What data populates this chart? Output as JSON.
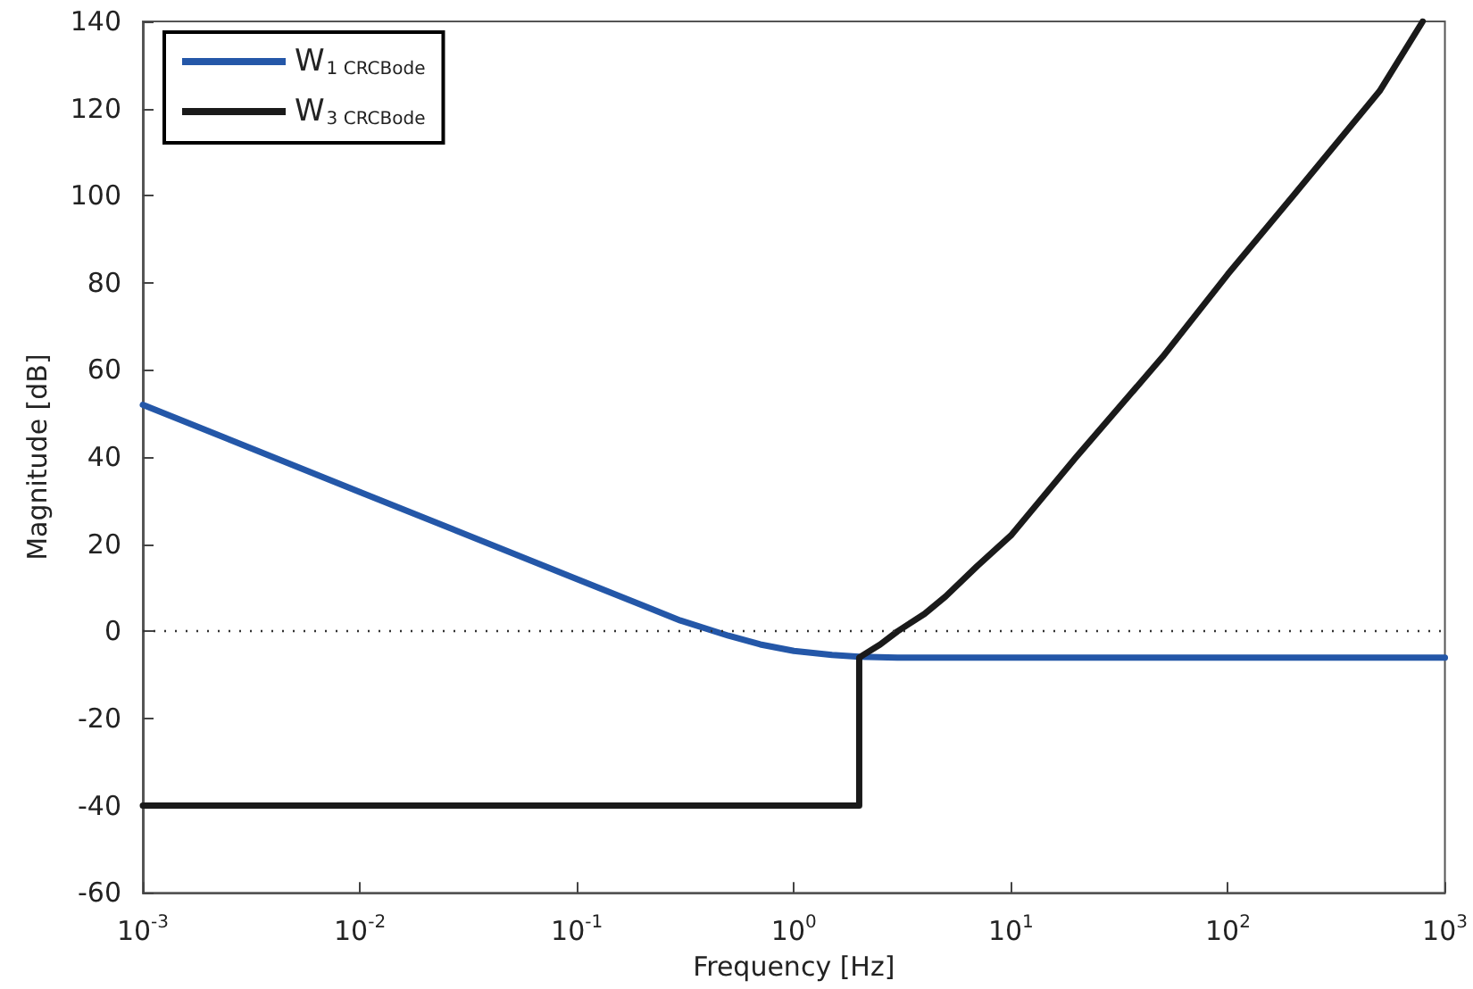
{
  "chart_data": {
    "type": "line",
    "xlabel": "Frequency [Hz]",
    "ylabel": "Magnitude [dB]",
    "log": "x",
    "xlim": [
      0.001,
      1000
    ],
    "xticks": [
      {
        "value": 0.001,
        "label": "10$^{-3}$"
      },
      {
        "value": 0.01,
        "label": "10$^{-2}$"
      },
      {
        "value": 0.1,
        "label": "10$^{-1}$"
      },
      {
        "value": 1,
        "label": "10$^{0}$"
      },
      {
        "value": 10,
        "label": "10$^{1}$"
      },
      {
        "value": 100,
        "label": "10$^{2}$"
      },
      {
        "value": 1000,
        "label": "10$^{3}$"
      }
    ],
    "ylim": [
      -60,
      140
    ],
    "yticks": [
      -60,
      -40,
      -20,
      0,
      20,
      40,
      60,
      80,
      100,
      120,
      140
    ],
    "grid": false,
    "legend": "top left",
    "marker": "none",
    "line_style": "solid",
    "ref_lines": [
      {
        "axis": "y",
        "value": 0,
        "color": "#333333",
        "line_style": "dotted"
      }
    ],
    "series": [
      {
        "name": "W$_{1 CRCBode}$",
        "color": "#2457a8",
        "x": [
          0.001,
          0.01,
          0.1,
          0.2,
          0.3,
          0.5,
          0.7,
          1,
          1.5,
          2,
          3,
          5,
          10,
          100,
          1000
        ],
        "values": [
          52,
          32,
          12,
          6,
          2.5,
          -1,
          -3,
          -4.5,
          -5.4,
          -5.8,
          -6,
          -6,
          -6,
          -6,
          -6
        ]
      },
      {
        "name": "W$_{3 CRCBode}$",
        "color": "#1a1a1a",
        "x": [
          0.001,
          2,
          2,
          2.5,
          3,
          4,
          5,
          7,
          10,
          20,
          50,
          100,
          200,
          500,
          790
        ],
        "values": [
          -40,
          -40,
          -6,
          -3,
          0,
          4,
          8,
          15,
          22,
          40,
          63,
          82,
          100,
          124,
          140
        ]
      }
    ]
  }
}
